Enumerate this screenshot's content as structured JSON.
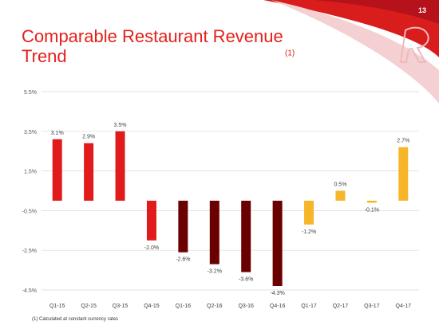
{
  "slide": {
    "page_number": "13",
    "title_text": "Comparable Restaurant Revenue Trend",
    "title_sup": "(1)",
    "footnote": "(1) Calculated at constant currency rates"
  },
  "colors": {
    "brand_red": "#e4201b",
    "bar_red": "#e11b1b",
    "bar_dark_red": "#6a0000",
    "bar_amber": "#f7b52a",
    "grid": "#d9d9d9"
  },
  "chart_data": {
    "type": "bar",
    "categories": [
      "Q1-15",
      "Q2-15",
      "Q3-15",
      "Q4-15",
      "Q1-16",
      "Q2-16",
      "Q3-16",
      "Q4-16",
      "Q1-17",
      "Q2-17",
      "Q3-17",
      "Q4-17"
    ],
    "values": [
      3.1,
      2.9,
      3.5,
      -2.0,
      -2.6,
      -3.2,
      -3.6,
      -4.3,
      -1.2,
      0.5,
      -0.1,
      2.7
    ],
    "value_labels": [
      "3.1%",
      "2.9%",
      "3.5%",
      "-2.0%",
      "-2.6%",
      "-3.2%",
      "-3.6%",
      "-4.3%",
      "-1.2%",
      "0.5%",
      "-0.1%",
      "2.7%"
    ],
    "bar_colors": [
      "#e11b1b",
      "#e11b1b",
      "#e11b1b",
      "#e11b1b",
      "#6a0000",
      "#6a0000",
      "#6a0000",
      "#6a0000",
      "#f7b52a",
      "#f7b52a",
      "#f7b52a",
      "#f7b52a"
    ],
    "y_ticks": [
      5.5,
      3.5,
      1.5,
      -0.5,
      -2.5,
      -4.5
    ],
    "y_tick_labels": [
      "5.5%",
      "3.5%",
      "1.5%",
      "-0.5%",
      "-2.5%",
      "-4.5%"
    ],
    "ylim": [
      -4.5,
      5.5
    ],
    "baseline": 0,
    "grid": true
  }
}
